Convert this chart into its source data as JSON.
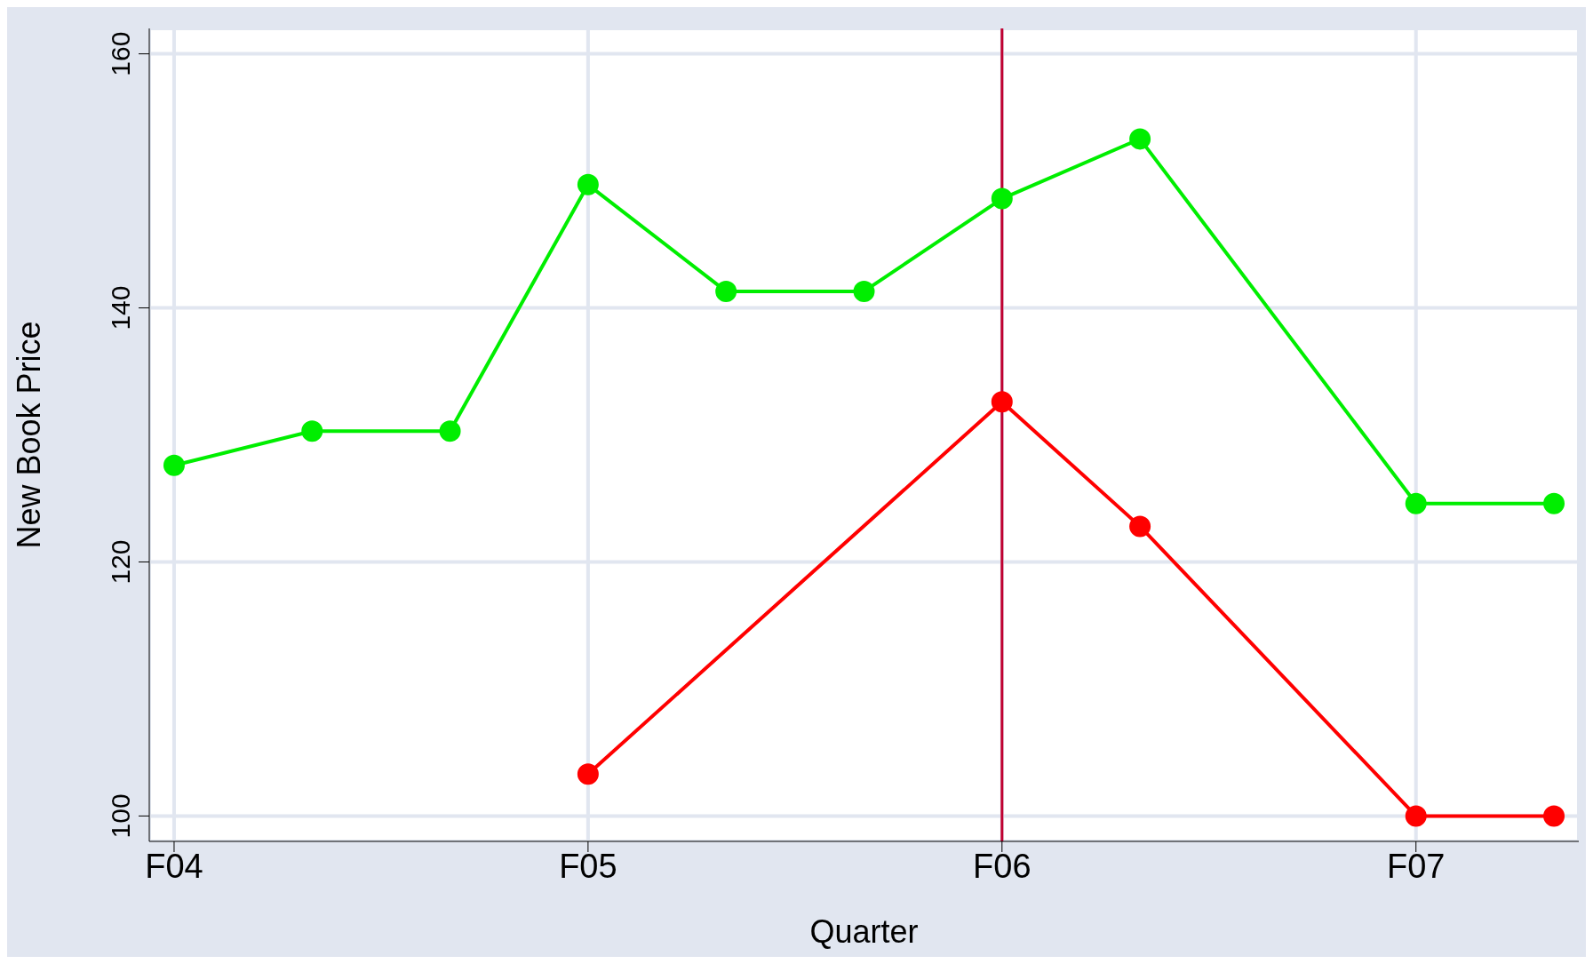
{
  "chart_data": {
    "type": "line",
    "xlabel": "Quarter",
    "ylabel": "New Book Price",
    "categories": [
      "F04",
      null,
      null,
      "F05",
      null,
      null,
      "F06",
      null,
      null,
      "F07",
      null
    ],
    "ylim": [
      98,
      162
    ],
    "yticks": [
      100,
      120,
      140,
      160
    ],
    "grid": true,
    "marker": "circle",
    "line_style": "solid",
    "series": [
      {
        "color": "#00ee00",
        "values": [
          127.6,
          130.3,
          130.3,
          149.7,
          141.3,
          141.3,
          148.6,
          153.3,
          null,
          124.6,
          124.6
        ]
      },
      {
        "color": "#ff0000",
        "values": [
          null,
          null,
          null,
          103.3,
          null,
          null,
          132.6,
          122.8,
          null,
          100,
          100
        ]
      }
    ],
    "ref_lines": [
      {
        "axis": "x",
        "value": "F06",
        "color": "#c00030",
        "line_style": "solid"
      }
    ]
  }
}
